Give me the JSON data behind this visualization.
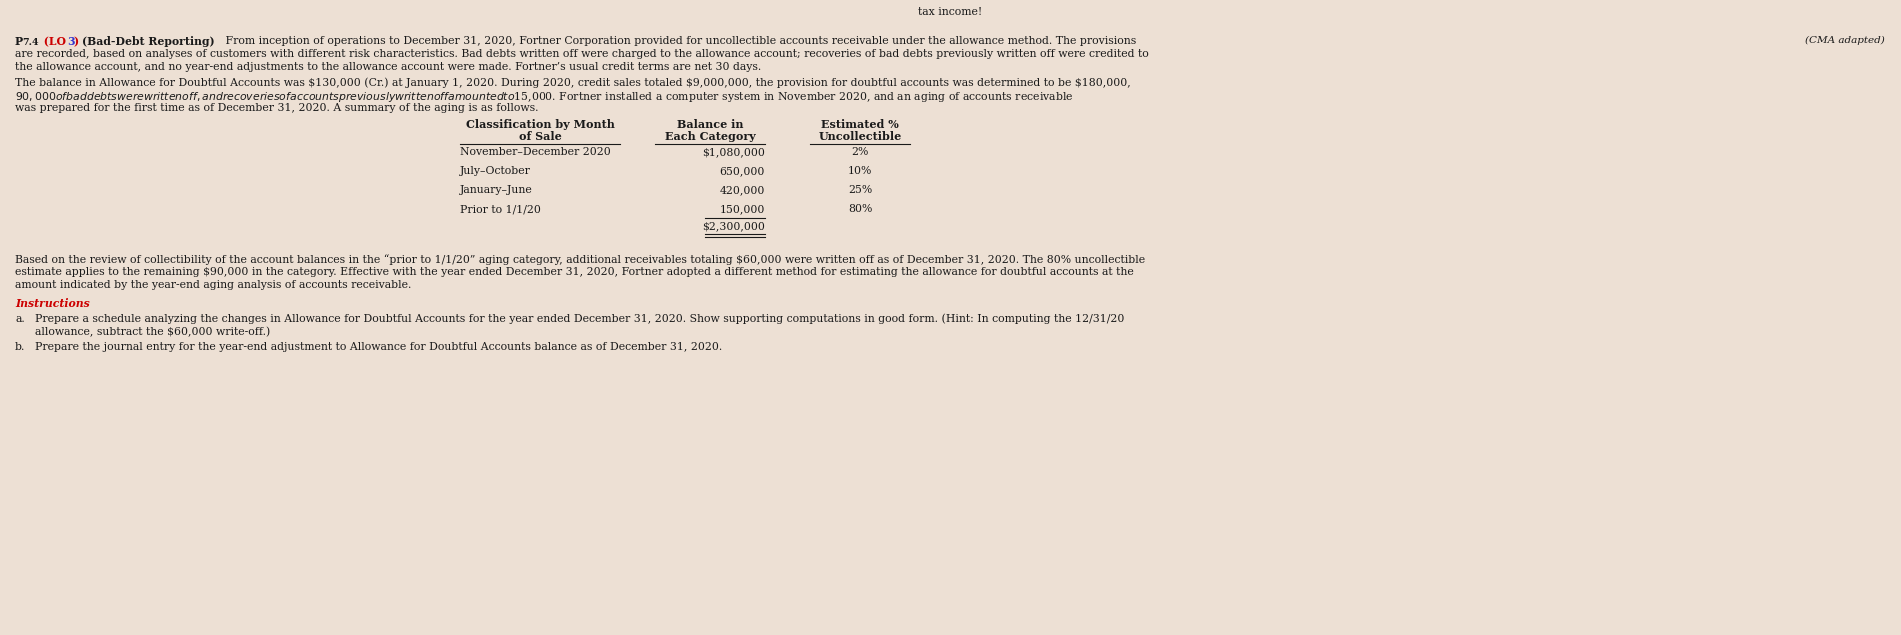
{
  "bg_color": "#ede0d4",
  "text_color": "#1a1a1a",
  "red_color": "#cc0000",
  "blue_color": "#3333cc",
  "instructions_color": "#cc0000",
  "figw": 19.01,
  "figh": 6.35,
  "dpi": 100,
  "top_text": "tax income!",
  "cma_adapted": "(CMA adapted)",
  "para1_line1": "From inception of operations to December 31, 2020, Fortner Corporation provided for uncollectible accounts receivable under the allowance method. The provisions",
  "para1_line2": "are recorded, based on analyses of customers with different risk characteristics. Bad debts written off were charged to the allowance account; recoveries of bad debts previously written off were credited to",
  "para1_line3": "the allowance account, and no year-end adjustments to the allowance account were made. Fortner’s usual credit terms are net 30 days.",
  "para2_line1": "The balance in Allowance for Doubtful Accounts was $130,000 (Cr.) at January 1, 2020. During 2020, credit sales totaled $9,000,000, the provision for doubtful accounts was determined to be $180,000,",
  "para2_line2": "$90,000 of bad debts were written off, and recoveries of accounts previously written off amounted to $15,000. Fortner installed a computer system in November 2020, and an aging of accounts receivable",
  "para2_line3": "was prepared for the first time as of December 31, 2020. A summary of the aging is as follows.",
  "table_col1_header": [
    "Classification by Month",
    "of Sale"
  ],
  "table_col2_header": [
    "Balance in",
    "Each Category"
  ],
  "table_col3_header": [
    "Estimated %",
    "Uncollectible"
  ],
  "table_rows": [
    [
      "November–December 2020",
      "$1,080,000",
      "2%"
    ],
    [
      "July–October",
      "650,000",
      "10%"
    ],
    [
      "January–June",
      "420,000",
      "25%"
    ],
    [
      "Prior to 1/1/20",
      "150,000",
      "80%"
    ]
  ],
  "table_total": "$2,300,000",
  "para3_line1": "Based on the review of collectibility of the account balances in the “prior to 1/1/20” aging category, additional receivables totaling $60,000 were written off as of December 31, 2020. The 80% uncollectible",
  "para3_line2": "estimate applies to the remaining $90,000 in the category. Effective with the year ended December 31, 2020, Fortner adopted a different method for estimating the allowance for doubtful accounts at the",
  "para3_line3": "amount indicated by the year-end aging analysis of accounts receivable.",
  "instructions_label": "Instructions",
  "inst_a_label": "a.",
  "inst_a_line1": "Prepare a schedule analyzing the changes in Allowance for Doubtful Accounts for the year ended December 31, 2020. Show supporting computations in good form. (Hint: In computing the 12/31/20",
  "inst_a_line2": "allowance, subtract the $60,000 write-off.)",
  "inst_b_label": "b.",
  "inst_b": "Prepare the journal entry for the year-end adjustment to Allowance for Doubtful Accounts balance as of December 31, 2020."
}
